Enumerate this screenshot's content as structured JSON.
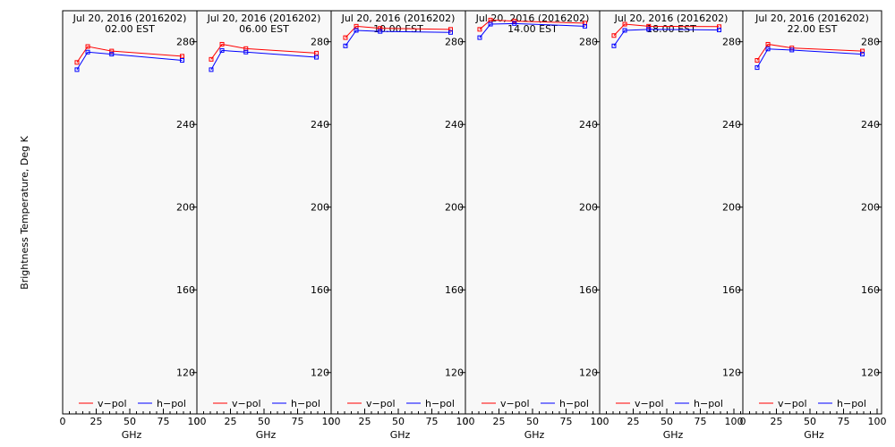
{
  "ylabel": "Brightness Temperature, Deg K",
  "xlabel": "GHz",
  "x_tick_labels": [
    "0",
    "25",
    "50",
    "75",
    "100"
  ],
  "y_tick_labels": [
    "120",
    "160",
    "200",
    "240",
    "280"
  ],
  "legend": {
    "v": "v−pol",
    "h": "h−pol"
  },
  "colors": {
    "v": "#ff0000",
    "h": "#0000ff",
    "panel_bg": "#f8f8f8",
    "axis": "#000000"
  },
  "chart_data": {
    "type": "line",
    "xlabel": "GHz",
    "ylabel": "Brightness Temperature, Deg K",
    "xlim": [
      0,
      100
    ],
    "ylim": [
      100,
      295
    ],
    "x": [
      10.65,
      18.7,
      36.5,
      89.0
    ],
    "panels": [
      {
        "title_line1": "Jul 20, 2016 (2016202)",
        "title_line2": "02.00 EST",
        "series": [
          {
            "name": "v−pol",
            "values": [
              270.0,
              277.7,
              275.5,
              273.0
            ]
          },
          {
            "name": "h−pol",
            "values": [
              266.5,
              275.0,
              274.0,
              271.0
            ]
          }
        ]
      },
      {
        "title_line1": "Jul 20, 2016 (2016202)",
        "title_line2": "06.00 EST",
        "series": [
          {
            "name": "v−pol",
            "values": [
              271.5,
              278.8,
              276.7,
              274.5
            ]
          },
          {
            "name": "h−pol",
            "values": [
              266.5,
              275.8,
              275.0,
              272.5
            ]
          }
        ]
      },
      {
        "title_line1": "Jul 20, 2016 (2016202)",
        "title_line2": "10.00 EST",
        "series": [
          {
            "name": "v−pol",
            "values": [
              282.0,
              287.5,
              286.5,
              286.0
            ]
          },
          {
            "name": "h−pol",
            "values": [
              278.0,
              285.5,
              285.0,
              284.5
            ]
          }
        ]
      },
      {
        "title_line1": "Jul 20, 2016 (2016202)",
        "title_line2": "14.00 EST",
        "series": [
          {
            "name": "v−pol",
            "values": [
              286.0,
              290.5,
              290.0,
              289.0
            ]
          },
          {
            "name": "h−pol",
            "values": [
              282.0,
              288.5,
              288.8,
              287.5
            ]
          }
        ]
      },
      {
        "title_line1": "Jul 20, 2016 (2016202)",
        "title_line2": "18.00 EST",
        "series": [
          {
            "name": "v−pol",
            "values": [
              283.0,
              288.5,
              287.5,
              287.3
            ]
          },
          {
            "name": "h−pol",
            "values": [
              278.0,
              285.5,
              286.0,
              285.7
            ]
          }
        ]
      },
      {
        "title_line1": "Jul 20, 2016 (2016202)",
        "title_line2": "22.00 EST",
        "series": [
          {
            "name": "v−pol",
            "values": [
              271.0,
              278.8,
              277.0,
              275.5
            ]
          },
          {
            "name": "h−pol",
            "values": [
              267.5,
              276.5,
              276.0,
              274.0
            ]
          }
        ]
      }
    ]
  }
}
